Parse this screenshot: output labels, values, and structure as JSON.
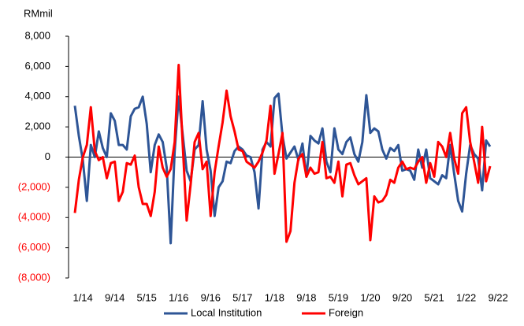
{
  "chart_data": {
    "type": "line",
    "y_axis_label": "RMmil",
    "categories": [
      null,
      null,
      "1/14",
      null,
      null,
      null,
      null,
      null,
      null,
      null,
      "9/14",
      null,
      null,
      null,
      null,
      null,
      null,
      null,
      "5/15",
      null,
      null,
      null,
      null,
      null,
      null,
      null,
      "1/16",
      null,
      null,
      null,
      null,
      null,
      null,
      null,
      "9/16",
      null,
      null,
      null,
      null,
      null,
      null,
      null,
      "5/17",
      null,
      null,
      null,
      null,
      null,
      null,
      null,
      "1/18",
      null,
      null,
      null,
      null,
      null,
      null,
      null,
      "9/18",
      null,
      null,
      null,
      null,
      null,
      null,
      null,
      "5/19",
      null,
      null,
      null,
      null,
      null,
      null,
      null,
      "1/20",
      null,
      null,
      null,
      null,
      null,
      null,
      null,
      "9/20",
      null,
      null,
      null,
      null,
      null,
      null,
      null,
      "5/21",
      null,
      null,
      null,
      null,
      null,
      null,
      null,
      "1/22",
      null,
      null,
      null,
      null,
      null,
      null,
      null,
      "9/22"
    ],
    "series": [
      {
        "name": "Local Institution",
        "color": "#2e5596",
        "values": [
          3400,
          1400,
          -200,
          -2900,
          800,
          0,
          1700,
          600,
          0,
          2900,
          2400,
          800,
          800,
          500,
          2700,
          3200,
          3300,
          4000,
          2200,
          -1000,
          800,
          1500,
          1000,
          -700,
          -5700,
          400,
          4000,
          1500,
          -900,
          -1600,
          500,
          800,
          3700,
          500,
          -900,
          -3900,
          -2000,
          -1600,
          -300,
          -400,
          400,
          700,
          500,
          100,
          0,
          -1000,
          -3400,
          500,
          1000,
          700,
          3900,
          4200,
          1400,
          -100,
          300,
          700,
          -200,
          900,
          -1300,
          1400,
          1100,
          900,
          1900,
          -300,
          -1000,
          1900,
          500,
          200,
          1000,
          1300,
          200,
          -300,
          1000,
          4100,
          1600,
          1900,
          1700,
          500,
          -100,
          600,
          400,
          800,
          -900,
          -800,
          -900,
          -1500,
          500,
          -700,
          500,
          -1400,
          -1600,
          -1800,
          -1200,
          -1400,
          800,
          -1100,
          -2900,
          -3600,
          -1100,
          800,
          200,
          -100,
          -2200,
          1100,
          700,
          null,
          null
        ]
      },
      {
        "name": "Foreign",
        "color": "#ff0000",
        "values": [
          -3700,
          -1500,
          0,
          800,
          3300,
          400,
          -200,
          0,
          -1400,
          -400,
          -300,
          -2900,
          -2300,
          -400,
          -500,
          100,
          -2000,
          -3100,
          -3100,
          -3900,
          -2300,
          700,
          -700,
          -1300,
          -800,
          1000,
          6100,
          900,
          -4200,
          -1800,
          1000,
          1600,
          -800,
          -300,
          -3900,
          -1000,
          700,
          2300,
          4400,
          2700,
          1700,
          500,
          400,
          -300,
          -500,
          -700,
          -300,
          300,
          1100,
          3400,
          -1100,
          200,
          1600,
          -5600,
          -4900,
          -1700,
          -100,
          200,
          -1300,
          -700,
          -1100,
          -1000,
          1000,
          -1400,
          -1300,
          -1700,
          -300,
          -2600,
          -500,
          -400,
          -1200,
          -1800,
          -1600,
          -1400,
          -5500,
          -2600,
          -3000,
          -2900,
          -2500,
          -1500,
          -1700,
          -700,
          -300,
          -800,
          -700,
          -800,
          -300,
          0,
          -1700,
          -400,
          -1300,
          1000,
          700,
          0,
          1600,
          -100,
          -1100,
          2900,
          3300,
          1000,
          -300,
          -1700,
          2000,
          -1600,
          -600,
          null,
          null
        ]
      }
    ],
    "ylim": [
      -8000,
      8000
    ],
    "yticks": [
      {
        "value": -8000,
        "label": "(8,000)"
      },
      {
        "value": -6000,
        "label": "(6,000)"
      },
      {
        "value": -4000,
        "label": "(4,000)"
      },
      {
        "value": -2000,
        "label": "(2,000)"
      },
      0,
      {
        "value": 2000,
        "label": "2,000"
      },
      {
        "value": 4000,
        "label": "4,000"
      },
      {
        "value": 6000,
        "label": "6,000"
      },
      {
        "value": 8000,
        "label": "8,000"
      }
    ],
    "negative_tick_color": "#ff0000",
    "grid": false,
    "legend": "bottom"
  }
}
